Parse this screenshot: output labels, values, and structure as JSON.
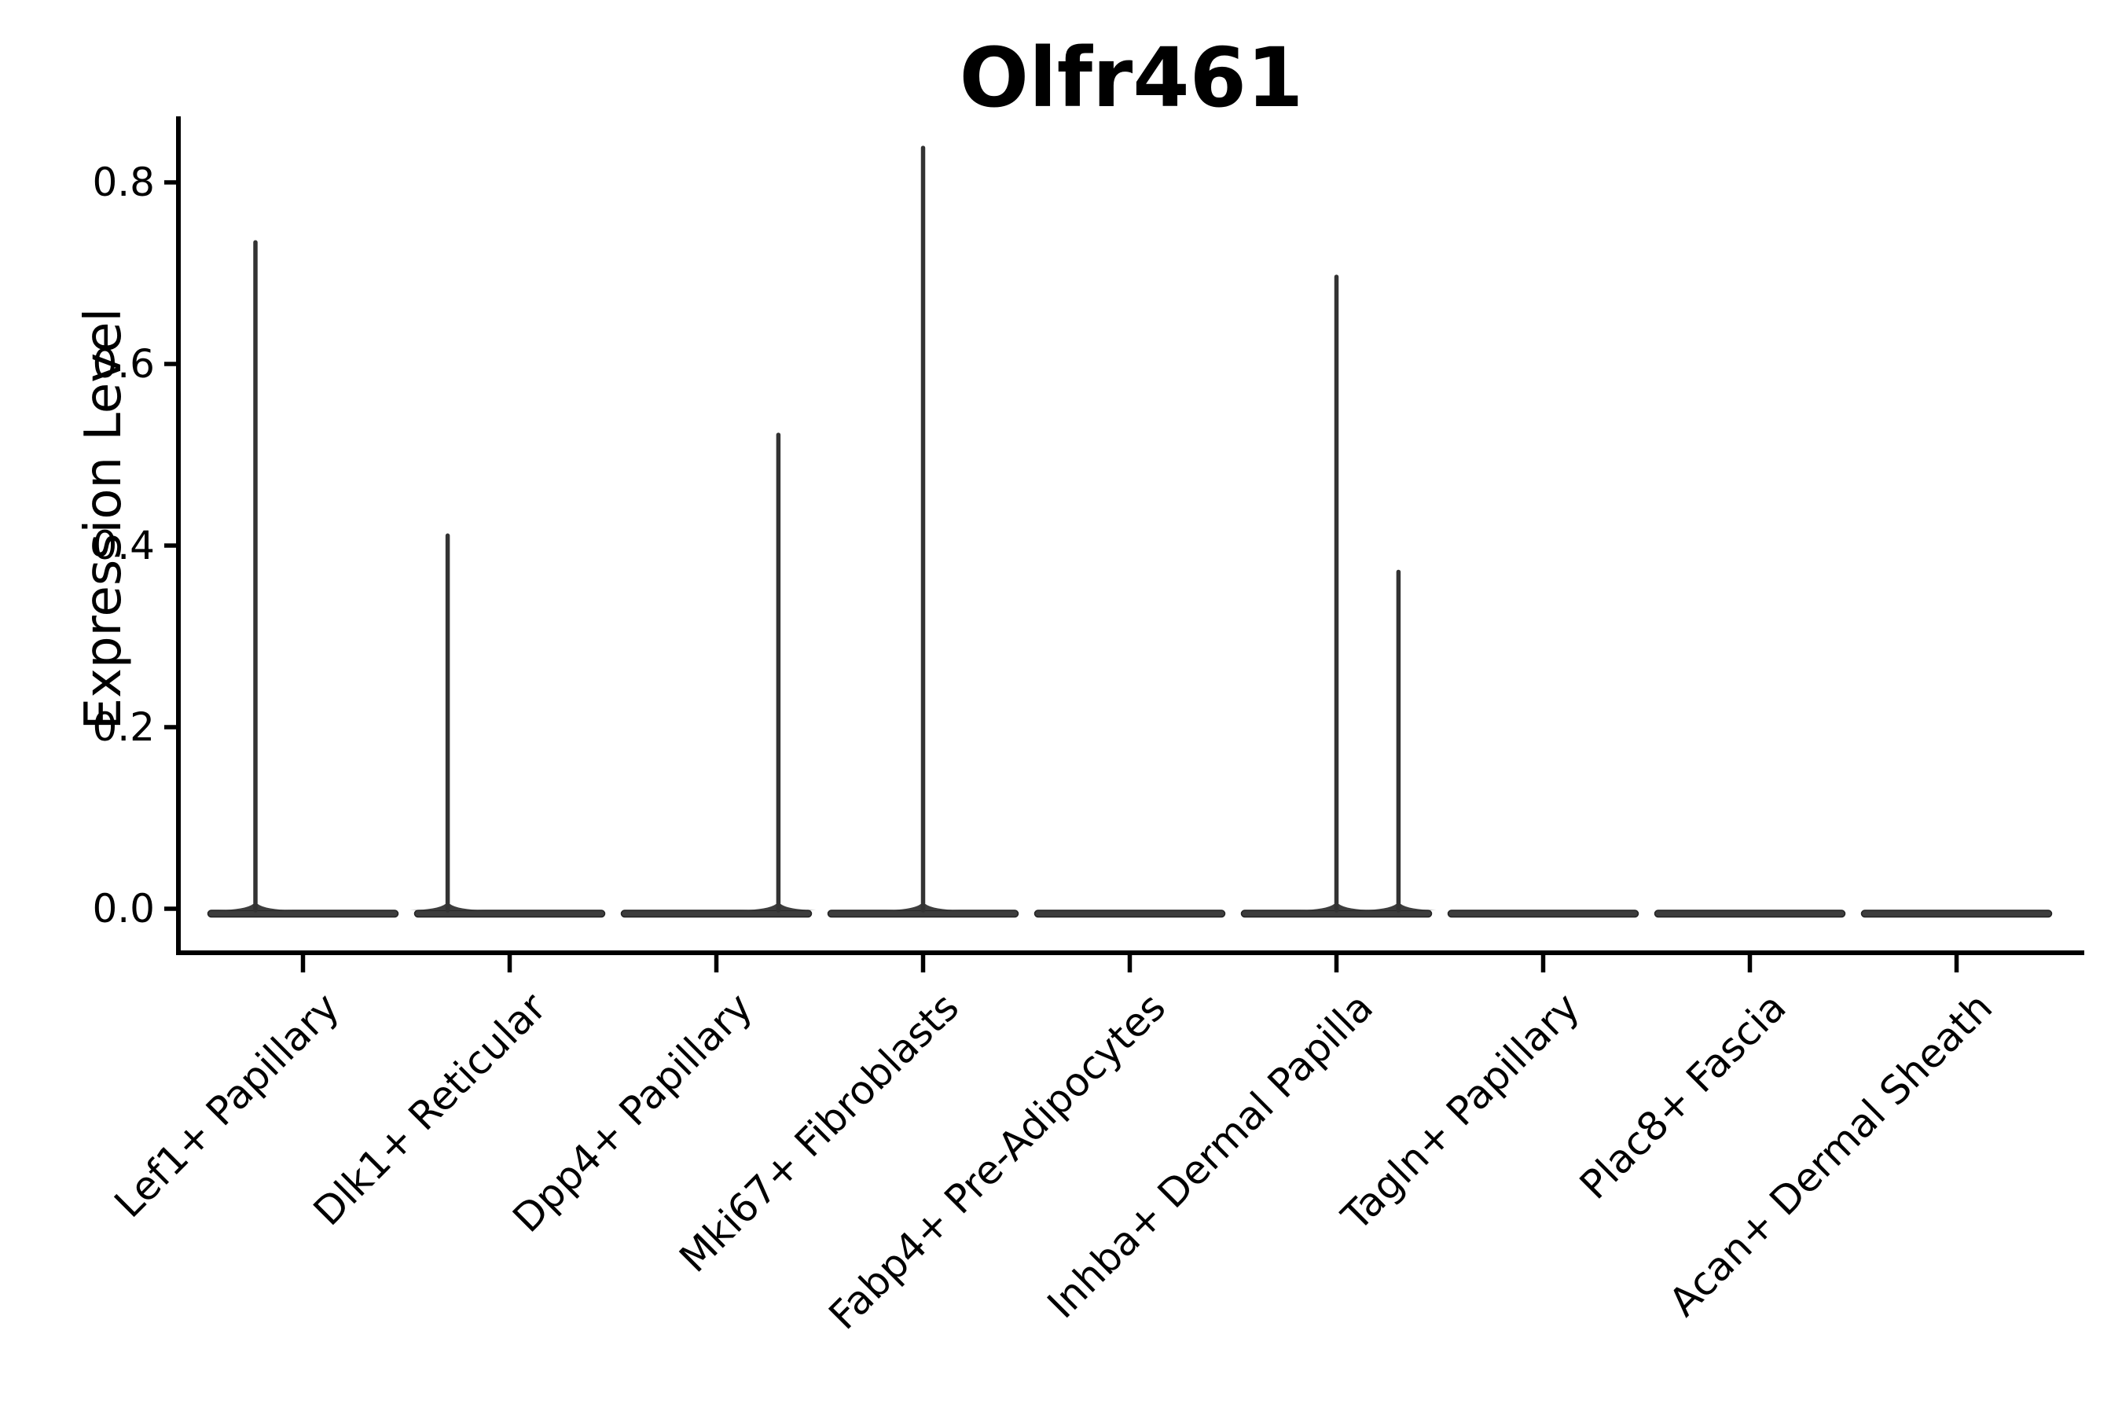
{
  "title": "Olfr461",
  "axes": {
    "ylabel": "Expression Level",
    "ytick_labels": [
      "0.0",
      "0.2",
      "0.4",
      "0.6",
      "0.8"
    ],
    "ytick_values": [
      0.0,
      0.2,
      0.4,
      0.6,
      0.8
    ]
  },
  "colors": {
    "violin": "#3d3d3d",
    "violin_edge": "#222222",
    "needle": "#333333",
    "axis": "#000000",
    "text": "#000000",
    "background": "#ffffff"
  },
  "chart_data": {
    "type": "violin",
    "title": "Olfr461",
    "xlabel": "",
    "ylabel": "Expression Level",
    "ylim": [
      -0.02,
      0.87
    ],
    "yticks": [
      0.0,
      0.2,
      0.4,
      0.6,
      0.8
    ],
    "grid": false,
    "legend_position": "none",
    "description": "Flat violins at expression 0 with thin density needles; needle x offset is fraction of category spacing from the category center",
    "categories": [
      "Lef1+ Papillary",
      "Dlk1+ Reticular",
      "Dpp4+ Papillary",
      "Mki67+ Fibroblasts",
      "Fabp4+ Pre-Adipocytes",
      "Inhba+ Dermal Papilla",
      "Tagln+ Papillary",
      "Plac8+ Fascia",
      "Acan+ Dermal Sheath"
    ],
    "series": [
      {
        "name": "Lef1+ Papillary",
        "baseline_value": 0.0,
        "spikes": [
          {
            "value": 0.734,
            "x_offset_frac": -0.23
          }
        ]
      },
      {
        "name": "Dlk1+ Reticular",
        "baseline_value": 0.0,
        "spikes": [
          {
            "value": 0.411,
            "x_offset_frac": -0.3
          }
        ]
      },
      {
        "name": "Dpp4+ Papillary",
        "baseline_value": 0.0,
        "spikes": [
          {
            "value": 0.522,
            "x_offset_frac": 0.3
          }
        ]
      },
      {
        "name": "Mki67+ Fibroblasts",
        "baseline_value": 0.0,
        "spikes": [
          {
            "value": 0.838,
            "x_offset_frac": 0.0
          }
        ]
      },
      {
        "name": "Fabp4+ Pre-Adipocytes",
        "baseline_value": 0.0,
        "spikes": []
      },
      {
        "name": "Inhba+ Dermal Papilla",
        "baseline_value": 0.0,
        "spikes": [
          {
            "value": 0.696,
            "x_offset_frac": 0.0
          },
          {
            "value": 0.371,
            "x_offset_frac": 0.3
          }
        ]
      },
      {
        "name": "Tagln+ Papillary",
        "baseline_value": 0.0,
        "spikes": []
      },
      {
        "name": "Plac8+ Fascia",
        "baseline_value": 0.0,
        "spikes": []
      },
      {
        "name": "Acan+ Dermal Sheath",
        "baseline_value": 0.0,
        "spikes": []
      }
    ]
  }
}
